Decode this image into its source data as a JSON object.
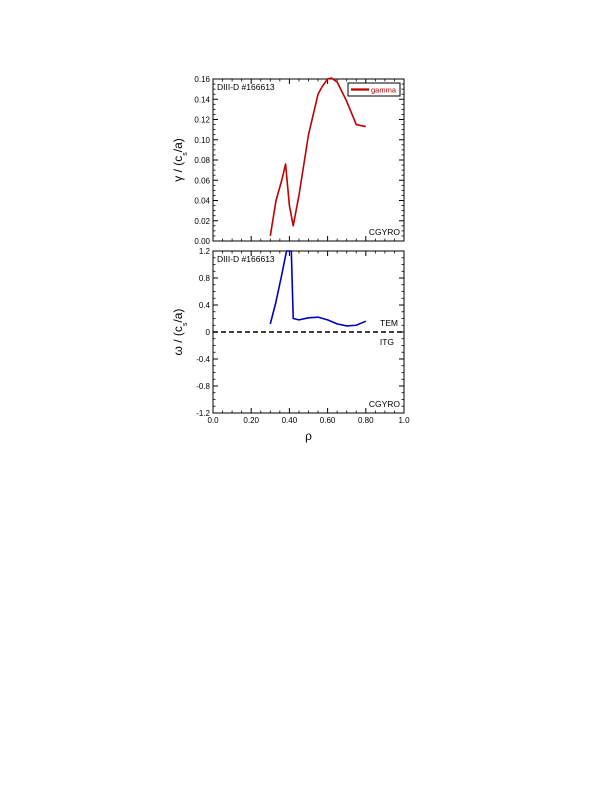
{
  "xlabel": "ρ",
  "xticks": [
    "0.0",
    "0.20",
    "0.40",
    "0.60",
    "0.80",
    "1.0"
  ],
  "chart_data": [
    {
      "type": "line",
      "annotation": "DIII-D #166613",
      "code_label": "CGYRO",
      "ylabel_main": "γ / (c",
      "ylabel_sub": "s",
      "ylabel_end": "/a)",
      "xlim": [
        0,
        1
      ],
      "ylim": [
        0,
        0.16
      ],
      "yticks": [
        0,
        0.02,
        0.04,
        0.06,
        0.08,
        0.1,
        0.12,
        0.14,
        0.16
      ],
      "ytick_labels": [
        "0.00",
        "0.02",
        "0.04",
        "0.06",
        "0.08",
        "0.10",
        "0.12",
        "0.14",
        "0.16"
      ],
      "legend": "top-right",
      "series": [
        {
          "name": "gamma",
          "color": "#c00000",
          "x": [
            0.3,
            0.33,
            0.36,
            0.38,
            0.4,
            0.42,
            0.45,
            0.5,
            0.55,
            0.57,
            0.6,
            0.62,
            0.65,
            0.7,
            0.75,
            0.8
          ],
          "y": [
            0.005,
            0.04,
            0.06,
            0.076,
            0.035,
            0.015,
            0.045,
            0.105,
            0.145,
            0.152,
            0.16,
            0.161,
            0.157,
            0.138,
            0.115,
            0.113
          ]
        }
      ]
    },
    {
      "type": "line",
      "annotation": "DIII-D #166613",
      "code_label": "CGYRO",
      "ylabel_main": "ω / (c",
      "ylabel_sub": "s",
      "ylabel_end": "/a)",
      "xlim": [
        0,
        1
      ],
      "ylim": [
        -1.2,
        1.2
      ],
      "yticks": [
        -1.2,
        -0.8,
        -0.4,
        0,
        0.4,
        0.8,
        1.2
      ],
      "ytick_labels": [
        "-1.2",
        "-0.8",
        "-0.4",
        "0",
        "0.4",
        "0.8",
        "1.2"
      ],
      "region_labels": {
        "upper": "TEM",
        "lower": "ITG"
      },
      "reference_line": {
        "y": 0,
        "style": "dashed"
      },
      "series": [
        {
          "color": "#0000c0",
          "x": [
            0.3,
            0.33,
            0.36,
            0.385,
            0.41,
            0.42,
            0.45,
            0.5,
            0.55,
            0.6,
            0.65,
            0.7,
            0.75,
            0.8
          ],
          "y": [
            0.12,
            0.45,
            0.85,
            1.2,
            1.2,
            0.2,
            0.18,
            0.21,
            0.22,
            0.18,
            0.12,
            0.09,
            0.1,
            0.16
          ]
        }
      ]
    }
  ]
}
